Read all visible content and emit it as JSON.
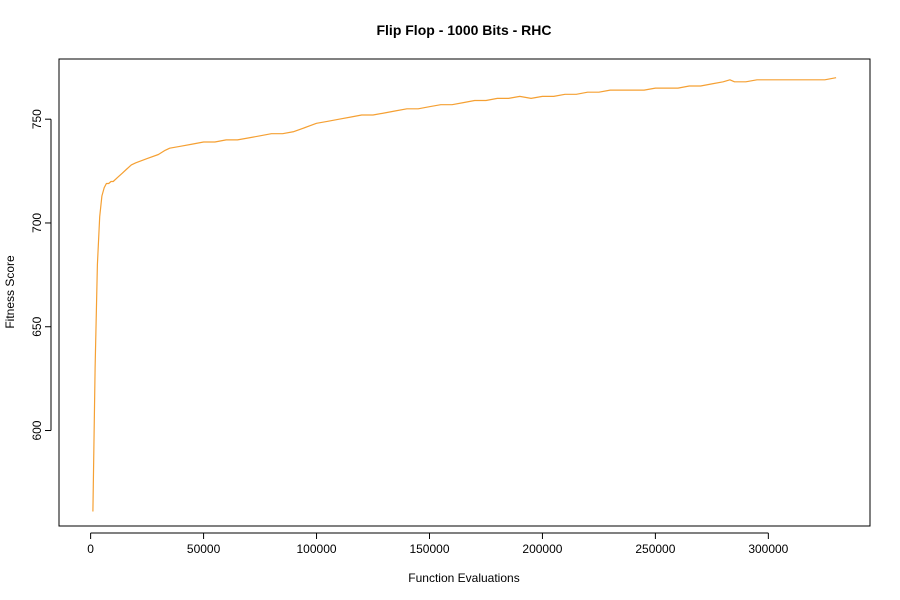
{
  "chart_data": {
    "type": "line",
    "title": "Flip Flop - 1000 Bits - RHC",
    "xlabel": "Function Evaluations",
    "ylabel": "Fitness Score",
    "xlim": [
      -14000,
      345000
    ],
    "ylim": [
      554,
      779
    ],
    "grid": false,
    "legend": "none",
    "x_ticks": [
      0,
      50000,
      100000,
      150000,
      200000,
      250000,
      300000
    ],
    "x_tick_labels": [
      "0",
      "50000",
      "100000",
      "150000",
      "200000",
      "250000",
      "300000"
    ],
    "y_ticks": [
      600,
      650,
      700,
      750
    ],
    "y_tick_labels": [
      "600",
      "650",
      "700",
      "750"
    ],
    "series": [
      {
        "color": "#f5a033",
        "x": [
          1000,
          2000,
          3000,
          4000,
          5000,
          6000,
          7000,
          8000,
          9000,
          10000,
          12000,
          14000,
          16000,
          18000,
          20000,
          25000,
          30000,
          33000,
          35000,
          40000,
          45000,
          50000,
          55000,
          60000,
          65000,
          70000,
          75000,
          80000,
          85000,
          90000,
          95000,
          100000,
          105000,
          110000,
          115000,
          120000,
          125000,
          130000,
          135000,
          140000,
          145000,
          150000,
          155000,
          160000,
          165000,
          170000,
          175000,
          180000,
          185000,
          190000,
          195000,
          200000,
          205000,
          210000,
          215000,
          220000,
          225000,
          230000,
          235000,
          240000,
          245000,
          250000,
          255000,
          260000,
          265000,
          270000,
          275000,
          280000,
          283000,
          285000,
          290000,
          295000,
          300000,
          305000,
          310000,
          315000,
          320000,
          325000,
          330000
        ],
        "y": [
          561,
          630,
          680,
          703,
          713,
          717,
          719,
          719,
          720,
          720,
          722,
          724,
          726,
          728,
          729,
          731,
          733,
          735,
          736,
          737,
          738,
          739,
          739,
          740,
          740,
          741,
          742,
          743,
          743,
          744,
          746,
          748,
          749,
          750,
          751,
          752,
          752,
          753,
          754,
          755,
          755,
          756,
          757,
          757,
          758,
          759,
          759,
          760,
          760,
          761,
          760,
          761,
          761,
          762,
          762,
          763,
          763,
          764,
          764,
          764,
          764,
          765,
          765,
          765,
          766,
          766,
          767,
          768,
          769,
          768,
          768,
          769,
          769,
          769,
          769,
          769,
          769,
          769,
          770
        ]
      }
    ]
  }
}
